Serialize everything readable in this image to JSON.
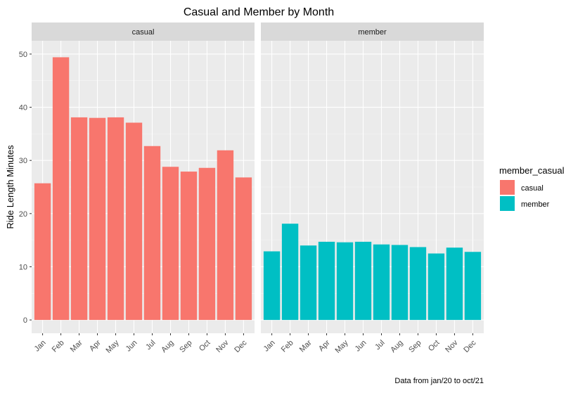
{
  "chart_data": {
    "type": "bar",
    "title": "Casual and Member by Month",
    "ylabel": "Ride Length Minutes",
    "caption": "Data from jan/20 to oct/21",
    "categories": [
      "Jan",
      "Feb",
      "Mar",
      "Apr",
      "May",
      "Jun",
      "Jul",
      "Aug",
      "Sep",
      "Oct",
      "Nov",
      "Dec"
    ],
    "yticks": [
      0,
      10,
      20,
      30,
      40,
      50
    ],
    "ylim": [
      -2.5,
      52.5
    ],
    "grid": true,
    "legend": {
      "title": "member_casual",
      "position": "right",
      "entries": [
        {
          "label": "casual",
          "color": "#F8766D"
        },
        {
          "label": "member",
          "color": "#00BFC4"
        }
      ]
    },
    "panels": [
      {
        "name": "casual",
        "color": "#F8766D",
        "values": [
          25.7,
          49.4,
          38.1,
          38.0,
          38.1,
          37.1,
          32.7,
          28.8,
          27.9,
          28.6,
          31.9,
          26.8
        ]
      },
      {
        "name": "member",
        "color": "#00BFC4",
        "values": [
          12.9,
          18.1,
          14.0,
          14.7,
          14.6,
          14.7,
          14.2,
          14.1,
          13.7,
          12.5,
          13.6,
          12.8
        ]
      }
    ]
  }
}
